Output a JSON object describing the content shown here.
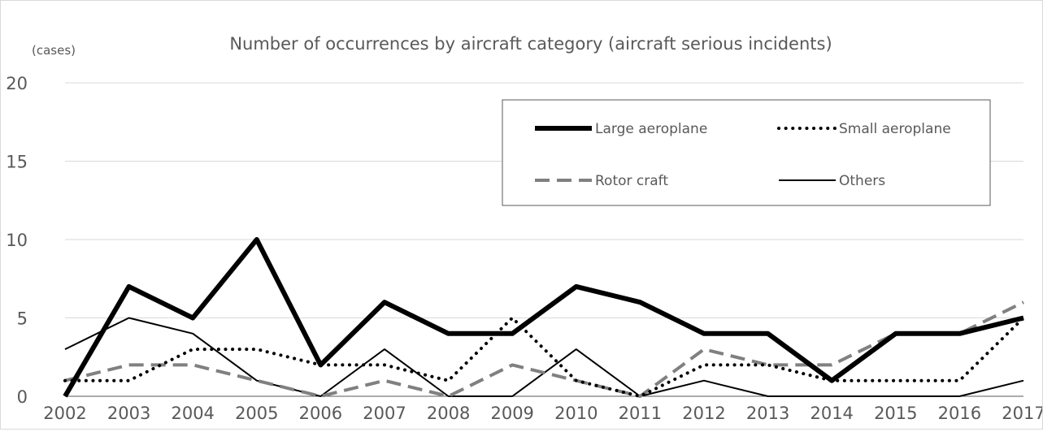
{
  "chart_data": {
    "type": "line",
    "title": "Number of occurrences by aircraft category (aircraft serious incidents)",
    "ylabel": "(cases)",
    "xlabel": "",
    "ylim": [
      0,
      20
    ],
    "yticks": [
      0,
      5,
      10,
      15,
      20
    ],
    "grid": true,
    "legend_position": "top-right",
    "categories": [
      "2002",
      "2003",
      "2004",
      "2005",
      "2006",
      "2007",
      "2008",
      "2009",
      "2010",
      "2011",
      "2012",
      "2013",
      "2014",
      "2015",
      "2016",
      "2017"
    ],
    "series": [
      {
        "name": "Large aeroplane",
        "style": "thick-solid",
        "color": "#000000",
        "values": [
          0,
          7,
          5,
          10,
          2,
          6,
          4,
          4,
          7,
          6,
          4,
          4,
          1,
          4,
          4,
          5
        ]
      },
      {
        "name": "Small aeroplane",
        "style": "dotted",
        "color": "#000000",
        "values": [
          1,
          1,
          3,
          3,
          2,
          2,
          1,
          5,
          1,
          0,
          2,
          2,
          1,
          1,
          1,
          5
        ]
      },
      {
        "name": "Rotor craft",
        "style": "dashed",
        "color": "#808080",
        "values": [
          1,
          2,
          2,
          1,
          0,
          1,
          0,
          2,
          1,
          0,
          3,
          2,
          2,
          4,
          4,
          6
        ]
      },
      {
        "name": "Others",
        "style": "thin-solid",
        "color": "#000000",
        "values": [
          3,
          5,
          4,
          1,
          0,
          3,
          0,
          0,
          3,
          0,
          1,
          0,
          0,
          0,
          0,
          1
        ]
      }
    ]
  }
}
